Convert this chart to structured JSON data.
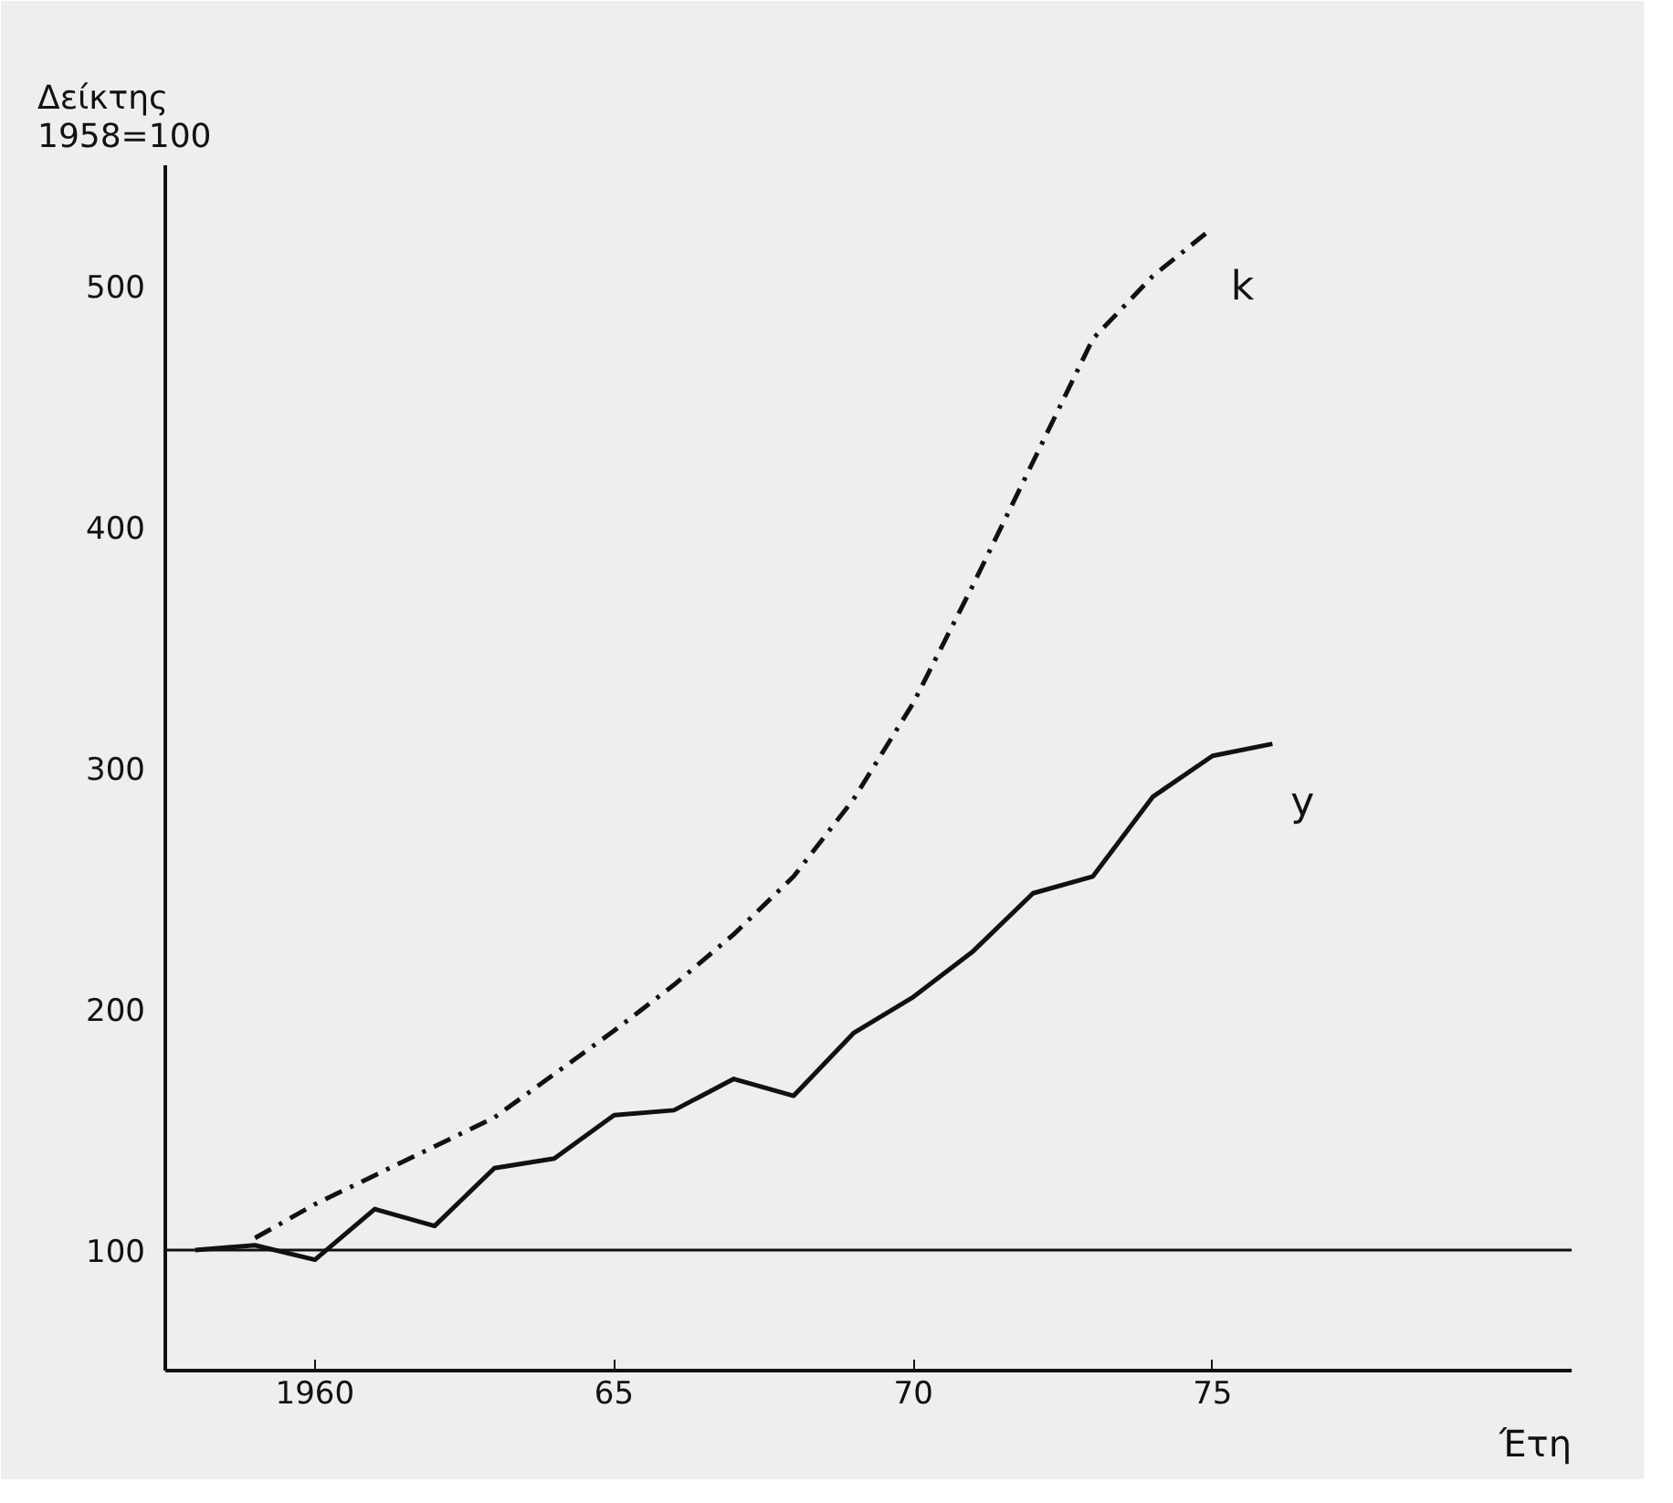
{
  "chart_data": {
    "type": "line",
    "ylabel": "Δείκτης\n1958=100",
    "xlabel": "Έτη",
    "xlim": [
      1957.5,
      1981
    ],
    "ylim": [
      50,
      550
    ],
    "xticks": [
      {
        "value": 1960,
        "label": "1960"
      },
      {
        "value": 1965,
        "label": "65"
      },
      {
        "value": 1970,
        "label": "70"
      },
      {
        "value": 1975,
        "label": "75"
      }
    ],
    "yticks": [
      100,
      200,
      300,
      400,
      500
    ],
    "series": [
      {
        "name": "k",
        "color": "#111111",
        "line_style": "dashdot",
        "x": [
          1959,
          1960,
          1961,
          1962,
          1963,
          1964,
          1965,
          1966,
          1967,
          1968,
          1969,
          1970,
          1971,
          1972,
          1973,
          1974,
          1975
        ],
        "values": [
          105,
          119,
          131,
          143,
          155,
          173,
          191,
          210,
          231,
          255,
          287,
          327,
          376,
          427,
          478,
          504,
          524
        ]
      },
      {
        "name": "y",
        "color": "#111111",
        "line_style": "solid",
        "x": [
          1958,
          1959,
          1960,
          1961,
          1962,
          1963,
          1964,
          1965,
          1966,
          1967,
          1968,
          1969,
          1970,
          1971,
          1972,
          1973,
          1974,
          1975,
          1976
        ],
        "values": [
          100,
          102,
          96,
          117,
          110,
          134,
          138,
          156,
          158,
          171,
          164,
          190,
          205,
          224,
          248,
          255,
          288,
          305,
          310
        ]
      }
    ],
    "ref_lines": [
      {
        "axis": "y",
        "value": 100,
        "color": "#111111",
        "line_style": "solid"
      }
    ],
    "grid": false,
    "marker": "none"
  }
}
